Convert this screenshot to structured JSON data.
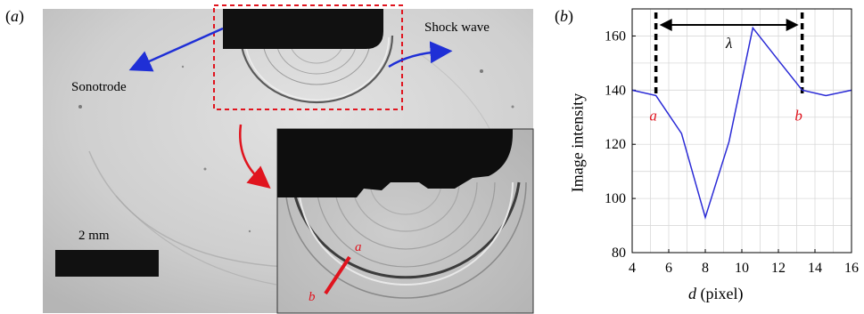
{
  "panel_a": {
    "label_open": "(",
    "label_letter": "a",
    "label_close": ")",
    "sonotrode_label": "Sonotrode",
    "shock_wave_label": "Shock wave",
    "scale_bar_label": "2 mm",
    "point_a": "a",
    "point_b": "b"
  },
  "panel_b": {
    "label_open": "(",
    "label_letter": "b",
    "label_close": ")",
    "lambda_label": "λ",
    "point_a": "a",
    "point_b": "b"
  },
  "colors": {
    "line": "#2a2ad6",
    "arrow_blue": "#1f2fd6",
    "annotation_red": "#e0141e",
    "dashed_box": "#e0141e",
    "dark": "#111111"
  },
  "chart_data": {
    "type": "line",
    "xlabel_italic": "d",
    "xlabel_rest": " (pixel)",
    "ylabel": "Image intensity",
    "xlim": [
      4,
      16
    ],
    "ylim": [
      80,
      170
    ],
    "xticks": [
      "4",
      "6",
      "8",
      "10",
      "12",
      "14",
      "16"
    ],
    "yticks": [
      "80",
      "100",
      "120",
      "140",
      "160"
    ],
    "grid": true,
    "x": [
      4,
      5.3,
      6.7,
      8,
      9.3,
      10.6,
      12,
      13.3,
      14.6,
      16
    ],
    "y": [
      140,
      138,
      124,
      93,
      121,
      163,
      151,
      140,
      138,
      140
    ],
    "marker_a_x": 5.3,
    "marker_b_x": 13.3
  }
}
